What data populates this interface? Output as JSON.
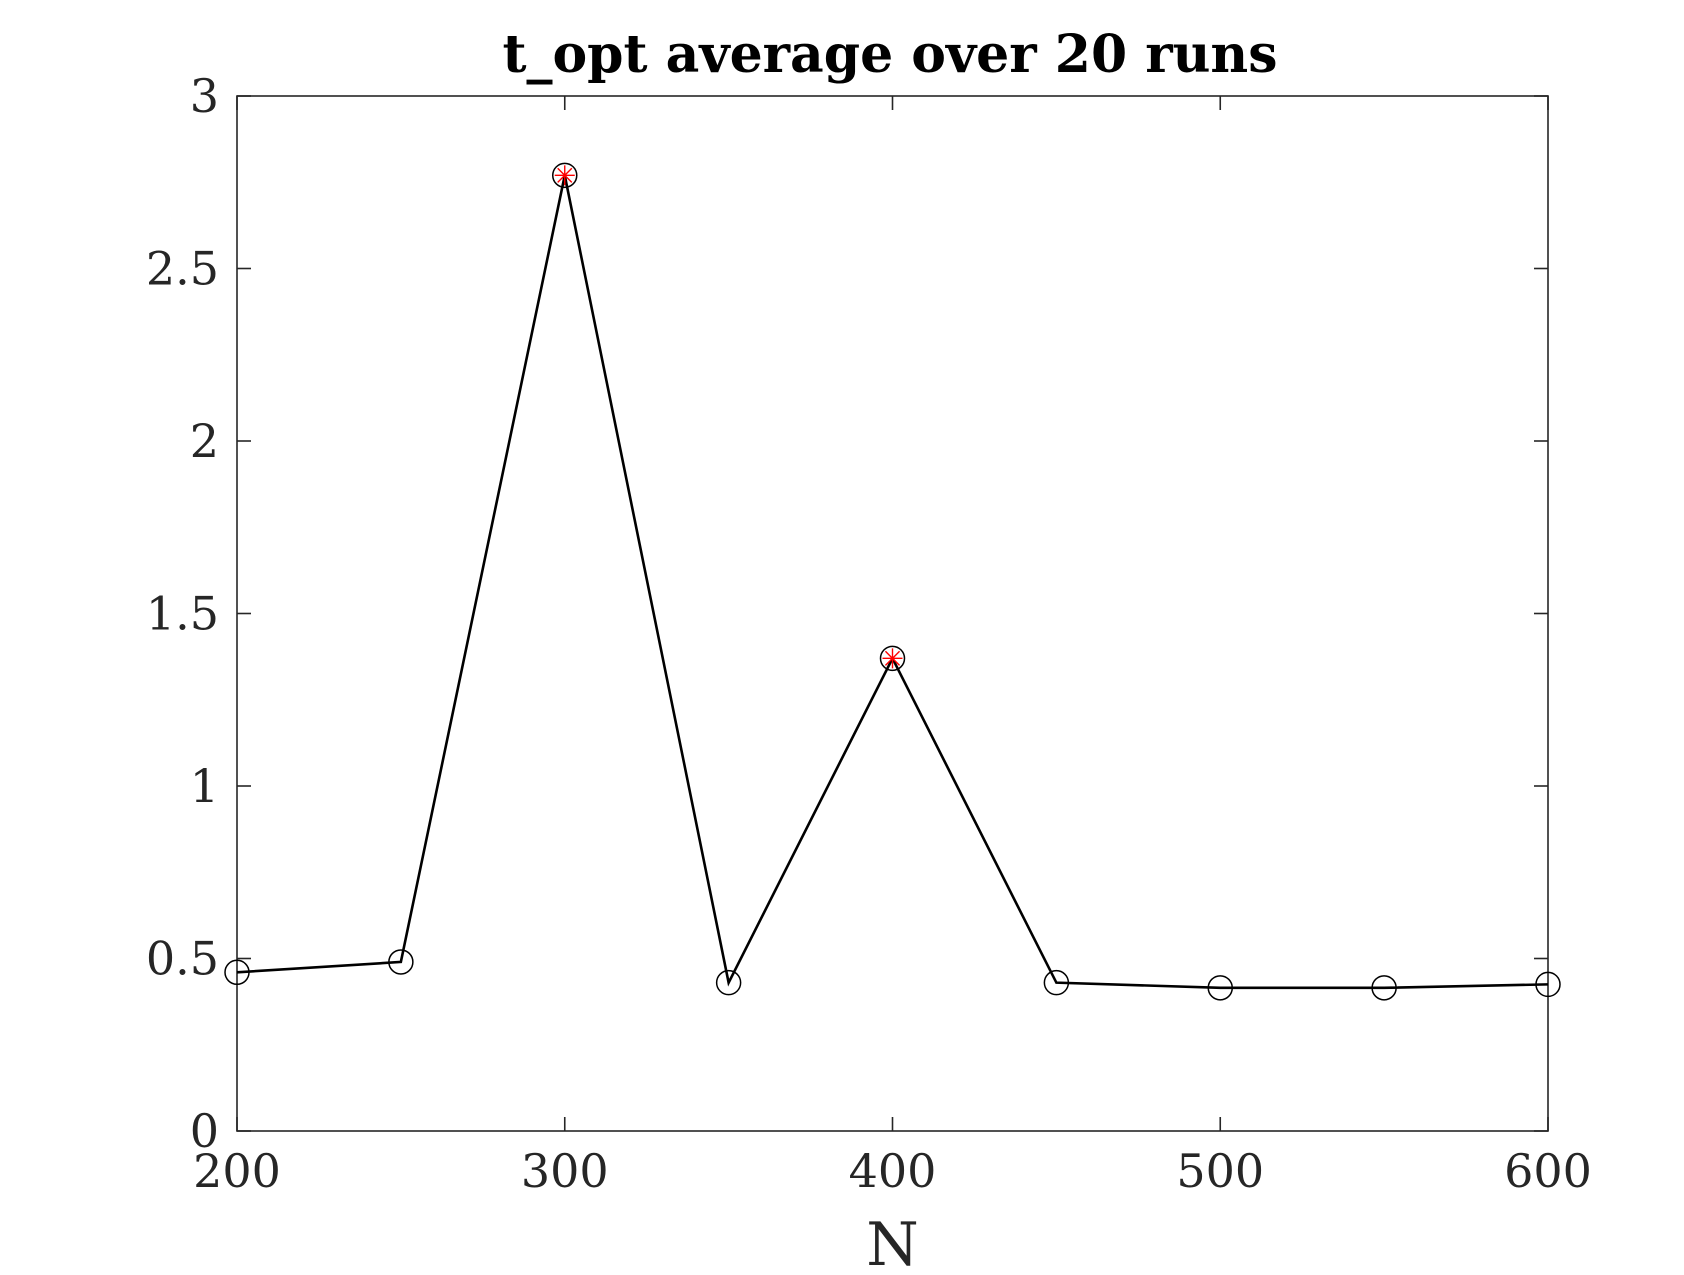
{
  "chart_data": {
    "type": "line",
    "title": "t_opt average over 20 runs",
    "xlabel": "N",
    "ylabel": "",
    "xlim": [
      200,
      600
    ],
    "ylim": [
      0,
      3
    ],
    "x_ticks": [
      200,
      300,
      400,
      500,
      600
    ],
    "x_tick_labels": [
      "200",
      "300",
      "400",
      "500",
      "600"
    ],
    "y_ticks": [
      0,
      0.5,
      1,
      1.5,
      2,
      2.5,
      3
    ],
    "y_tick_labels": [
      "0",
      "0.5",
      "1",
      "1.5",
      "2",
      "2.5",
      "3"
    ],
    "grid": false,
    "legend": "none",
    "series": [
      {
        "x": [
          200,
          250,
          300,
          350,
          400,
          450,
          500,
          550,
          600
        ],
        "y": [
          0.46,
          0.49,
          2.77,
          0.43,
          1.37,
          0.43,
          0.415,
          0.415,
          0.425
        ],
        "line_color": "#000000",
        "marker": "circle",
        "marker_color": "#000000"
      },
      {
        "x": [
          300,
          400
        ],
        "y": [
          2.77,
          1.37
        ],
        "line": "none",
        "marker": "asterisk",
        "marker_color": "#ff0000"
      }
    ],
    "axis_color": "#262626"
  }
}
